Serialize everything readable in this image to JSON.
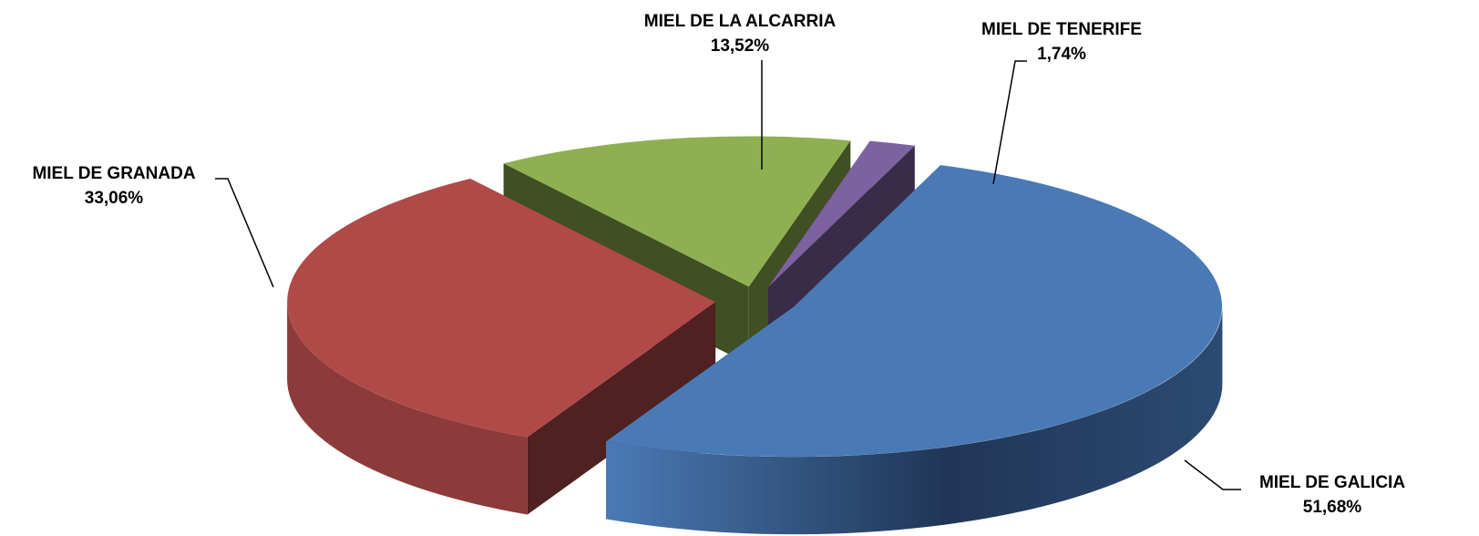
{
  "chart_data": {
    "type": "pie3d",
    "categories": [
      "MIEL DE GALICIA",
      "MIEL DE GRANADA",
      "MIEL DE LA ALCARRIA",
      "MIEL DE TENERIFE"
    ],
    "values": [
      51.68,
      33.06,
      13.52,
      1.74
    ],
    "value_labels": [
      "51,68%",
      "33,06%",
      "13,52%",
      "1,74%"
    ],
    "colors": [
      "#4a7ab5",
      "#b04a48",
      "#8fb050",
      "#7c62a0"
    ]
  }
}
